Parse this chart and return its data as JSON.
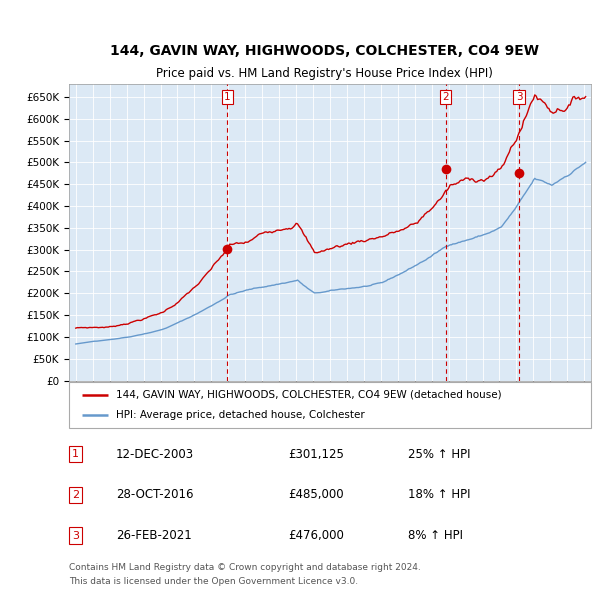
{
  "title": "144, GAVIN WAY, HIGHWOODS, COLCHESTER, CO4 9EW",
  "subtitle": "Price paid vs. HM Land Registry's House Price Index (HPI)",
  "legend_line1": "144, GAVIN WAY, HIGHWOODS, COLCHESTER, CO4 9EW (detached house)",
  "legend_line2": "HPI: Average price, detached house, Colchester",
  "footer1": "Contains HM Land Registry data © Crown copyright and database right 2024.",
  "footer2": "This data is licensed under the Open Government Licence v3.0.",
  "sale_color": "#cc0000",
  "hpi_color": "#6699cc",
  "background_color": "#dce9f5",
  "vline_color": "#cc0000",
  "ylim": [
    0,
    680000
  ],
  "ytick_step": 50000,
  "xmin": 1994.6,
  "xmax": 2025.4,
  "sales": [
    {
      "label": "1",
      "date_num": 2003.95,
      "price": 301125,
      "date_str": "12-DEC-2003",
      "pct": "25%"
    },
    {
      "label": "2",
      "date_num": 2016.83,
      "price": 485000,
      "date_str": "28-OCT-2016",
      "pct": "18%"
    },
    {
      "label": "3",
      "date_num": 2021.15,
      "price": 476000,
      "date_str": "26-FEB-2021",
      "pct": "8%"
    }
  ]
}
